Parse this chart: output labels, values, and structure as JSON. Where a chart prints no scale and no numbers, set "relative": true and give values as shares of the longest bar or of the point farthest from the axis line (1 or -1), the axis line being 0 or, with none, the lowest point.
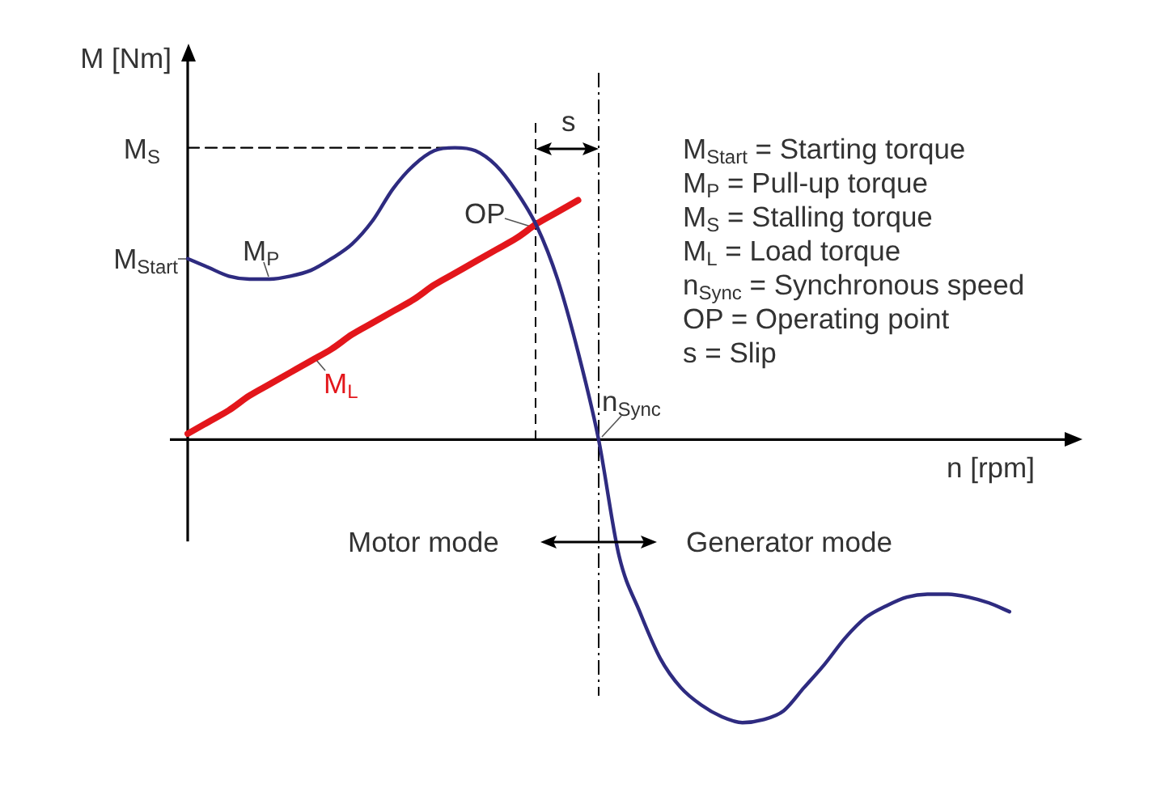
{
  "chart_data": {
    "type": "line",
    "relative": true,
    "tick_labels": false,
    "xlabel": "n [rpm]",
    "ylabel": "M [Nm]",
    "categories": [
      null,
      null,
      null,
      null,
      null,
      null,
      null,
      null,
      null,
      null,
      null,
      null,
      null,
      null,
      null,
      null,
      null,
      null,
      null,
      null,
      null,
      null,
      null,
      null,
      null,
      null,
      null,
      null,
      null,
      null,
      null,
      null,
      null,
      null,
      null,
      null,
      null,
      null,
      null,
      null,
      null,
      null,
      null,
      null
    ],
    "series": [
      {
        "color": "#2e2b80",
        "values": [
          0.62,
          0.59,
          0.56,
          0.55,
          0.55,
          0.56,
          0.58,
          0.62,
          0.67,
          0.75,
          0.86,
          0.94,
          0.99,
          1,
          0.99,
          0.94,
          0.85,
          0.73,
          0.55,
          0.3,
          0,
          -0.4,
          -0.59,
          -0.75,
          -0.85,
          -0.91,
          -0.95,
          -0.97,
          -0.96,
          -0.93,
          -0.85,
          -0.77,
          -0.68,
          -0.61,
          -0.57,
          -0.54,
          -0.53,
          -0.53,
          -0.54,
          -0.56,
          -0.59,
          null,
          null,
          null
        ]
      },
      {
        "name": "M$_{L}$",
        "color": "#e3161b",
        "values": [
          0.02,
          0.06,
          0.1,
          0.15,
          0.19,
          0.23,
          0.27,
          0.31,
          0.36,
          0.4,
          0.44,
          0.48,
          0.53,
          0.57,
          0.61,
          0.65,
          0.69,
          0.74,
          0.78,
          0.82,
          null,
          null,
          null,
          null,
          null,
          null,
          null,
          null,
          null,
          null,
          null,
          null,
          null,
          null,
          null,
          null,
          null,
          null,
          null,
          null,
          null,
          null,
          null,
          null
        ]
      },
      {
        "color": "#000000",
        "line_style": "dashed",
        "values": [
          1,
          1,
          1,
          1,
          1,
          1,
          1,
          1,
          1,
          1,
          1,
          1,
          1,
          1,
          null,
          null,
          null,
          null,
          null,
          null,
          null,
          null,
          null,
          null,
          null,
          null,
          null,
          null,
          null,
          null,
          null,
          null,
          null,
          null,
          null,
          null,
          null,
          null,
          null,
          null,
          null,
          null,
          null,
          null
        ]
      }
    ],
    "annotations": [
      "M$_{S}$",
      "M$_{Start}$",
      "M$_{P}$",
      "OP",
      "s",
      "n$_{Sync}$",
      "Motor mode",
      "Generator mode",
      "M$_{Start}$ = Starting torque",
      "M$_{P}$ = Pull-up torque",
      "M$_{S}$ = Stalling torque",
      "M$_{L}$ = Load torque",
      "n$_{Sync}$ = Synchronous speed",
      "OP = Operating point",
      "s = Slip"
    ]
  }
}
